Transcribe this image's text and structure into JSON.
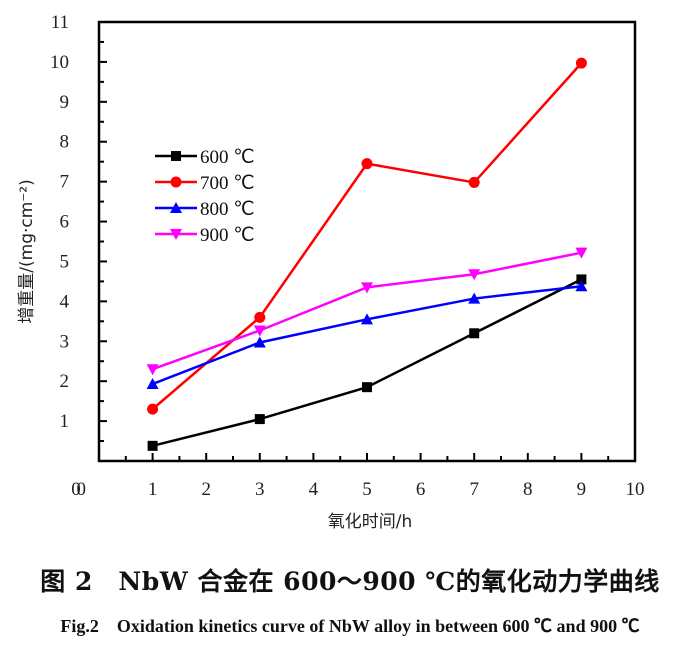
{
  "chart_data": {
    "type": "line",
    "title": "",
    "xlabel": "氧化时间/h",
    "ylabel": "增重量/(mg·cm⁻²)",
    "xlim": [
      0,
      10
    ],
    "ylim": [
      0,
      11
    ],
    "xticks": [
      0,
      1,
      2,
      3,
      4,
      5,
      6,
      7,
      8,
      9,
      10
    ],
    "yticks": [
      0,
      1,
      2,
      3,
      4,
      5,
      6,
      7,
      8,
      9,
      10,
      11
    ],
    "grid": false,
    "legend_position": "upper-left",
    "x": [
      1,
      3,
      5,
      7,
      9
    ],
    "series": [
      {
        "name": "600 ℃",
        "color": "#000000",
        "marker": "square",
        "values": [
          0.38,
          1.05,
          1.85,
          3.2,
          4.55
        ]
      },
      {
        "name": "700 ℃",
        "color": "#ff0000",
        "marker": "circle",
        "values": [
          1.3,
          3.6,
          7.45,
          6.98,
          9.97
        ]
      },
      {
        "name": "800 ℃",
        "color": "#0000ff",
        "marker": "triangle-up",
        "values": [
          1.93,
          2.97,
          3.55,
          4.07,
          4.38
        ]
      },
      {
        "name": "900 ℃",
        "color": "#ff00ff",
        "marker": "triangle-down",
        "values": [
          2.3,
          3.27,
          4.35,
          4.68,
          5.22
        ]
      }
    ]
  },
  "caption": {
    "chinese": "图 2　NbW 合金在 600～900 ℃的氧化动力学曲线",
    "english": "Fig.2　Oxidation kinetics curve of NbW alloy in between 600 ℃ and 900 ℃"
  }
}
